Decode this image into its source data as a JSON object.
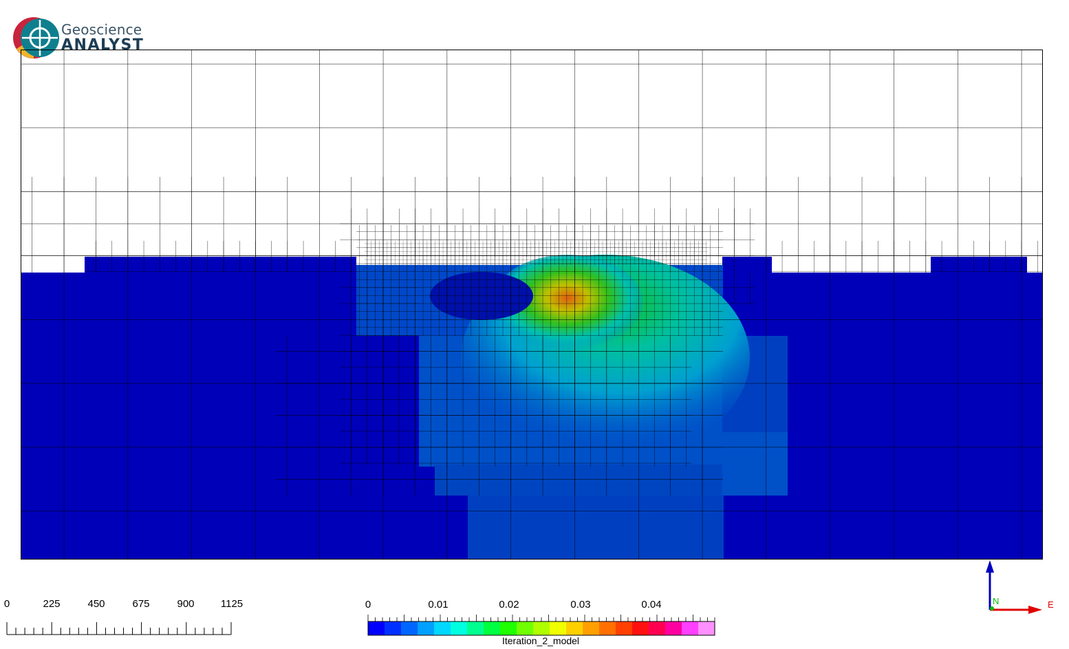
{
  "app": {
    "logo_line1": "Geoscience",
    "logo_line2": "ANALYST"
  },
  "scale_bar": {
    "ticks": [
      "0",
      "225",
      "450",
      "675",
      "900",
      "1125"
    ]
  },
  "colorbar": {
    "title": "Iteration_2_model",
    "ticks": [
      "0",
      "0.01",
      "0.02",
      "0.03",
      "0.04"
    ],
    "range": [
      0,
      0.049
    ],
    "colors": [
      "#0000ff",
      "#0030ff",
      "#0066ff",
      "#00a0ff",
      "#00d8ff",
      "#00ffe0",
      "#00ff90",
      "#00ff40",
      "#20ff00",
      "#70ff00",
      "#b0ff00",
      "#f0ff00",
      "#ffd000",
      "#ffa000",
      "#ff7000",
      "#ff4000",
      "#ff1010",
      "#ff0050",
      "#ff00a0",
      "#ff40ff",
      "#ff90ff"
    ]
  },
  "orientation": {
    "north_label": "N",
    "east_label": "E",
    "up_color": "#0000c0",
    "north_color": "#00c000",
    "east_color": "#e00000"
  },
  "model_colors": {
    "background_deep": "#0000b8",
    "air": "#ffffff",
    "mesh_line": "#000000"
  }
}
